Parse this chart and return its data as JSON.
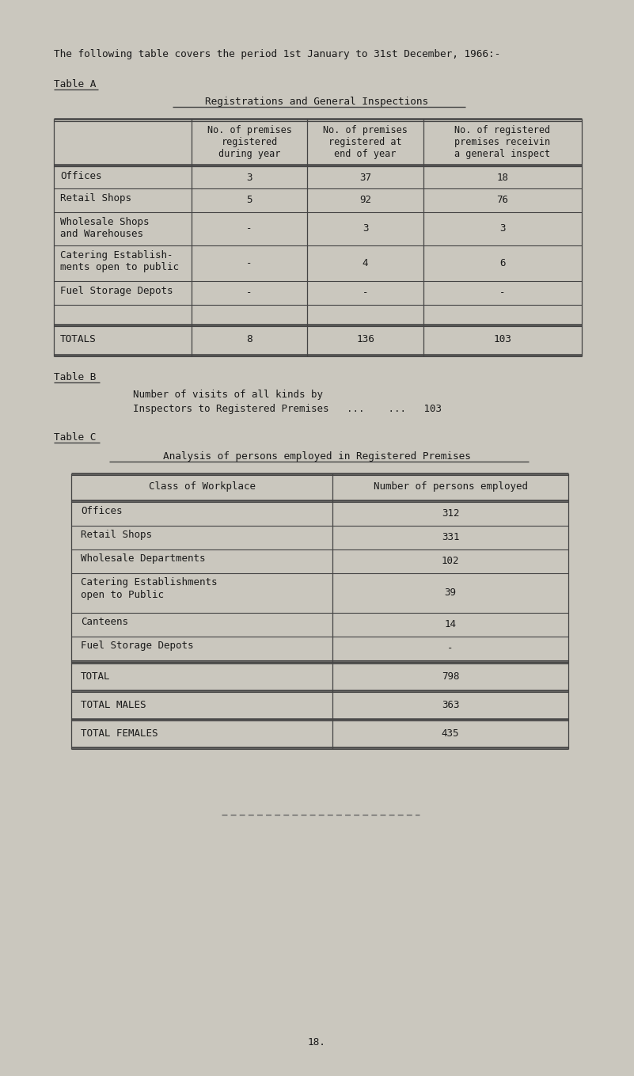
{
  "bg_color": "#cac7be",
  "text_color": "#1a1a1a",
  "line_color": "#444444",
  "intro_text": "The following table covers the period 1st January to 31st December, 1966:-",
  "table_a_label": "Table A",
  "table_a_title": "Registrations and General Inspections",
  "table_a_col0_header": "",
  "table_a_col1_header": [
    "No. of premises",
    "registered",
    "during year"
  ],
  "table_a_col2_header": [
    "No. of premises",
    "registered at",
    "end of year"
  ],
  "table_a_col3_header": [
    "No. of registered",
    "premises receivin",
    "a general inspect"
  ],
  "table_a_rows": [
    [
      "Offices",
      "3",
      "37",
      "18"
    ],
    [
      "Retail Shops",
      "5",
      "92",
      "76"
    ],
    [
      "Wholesale Shops",
      "and Warehouses",
      "-",
      "3",
      "3"
    ],
    [
      "Catering Establish-",
      "ments open to public",
      "-",
      "4",
      "6"
    ],
    [
      "Fuel Storage Depots",
      "-",
      "-",
      "-"
    ]
  ],
  "table_a_totals": [
    "TOTALS",
    "8",
    "136",
    "103"
  ],
  "table_b_label": "Table B",
  "table_b_line1": "Number of visits of all kinds by",
  "table_b_line2": "Inspectors to Registered Premises   ...    ...   103",
  "table_c_label": "Table C",
  "table_c_title": "Analysis of persons employed in Registered Premises",
  "table_c_col1_header": "Class of Workplace",
  "table_c_col2_header": "Number of persons employed",
  "table_c_rows": [
    [
      "Offices",
      "312"
    ],
    [
      "Retail Shops",
      "331"
    ],
    [
      "Wholesale Departments",
      "102"
    ],
    [
      "Catering Establishments",
      "open to Public",
      "39"
    ],
    [
      "Canteens",
      "14"
    ],
    [
      "Fuel Storage Depots",
      "-"
    ]
  ],
  "table_c_total": [
    "TOTAL",
    "798"
  ],
  "table_c_males": [
    "TOTAL MALES",
    "363"
  ],
  "table_c_females": [
    "TOTAL FEMALES",
    "435"
  ],
  "page_number": "18."
}
